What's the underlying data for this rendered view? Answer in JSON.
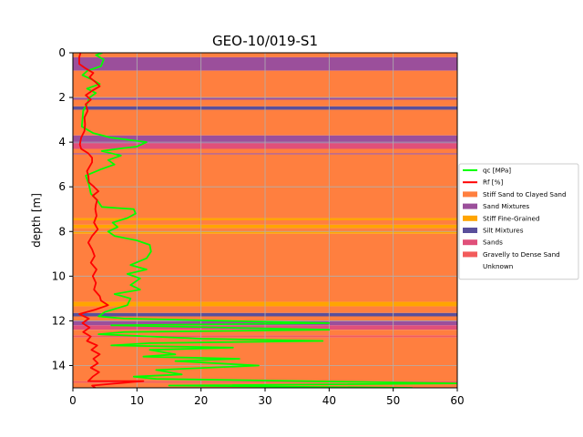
{
  "chart_data": {
    "type": "line",
    "title": "GEO-10/019-S1",
    "xlabel": "",
    "ylabel": "depth [m]",
    "xlim": [
      0,
      60
    ],
    "ylim": [
      15,
      0
    ],
    "x_ticks": [
      "0",
      "10",
      "20",
      "30",
      "40",
      "50",
      "60"
    ],
    "y_ticks": [
      "0",
      "2",
      "4",
      "6",
      "8",
      "10",
      "12",
      "14"
    ],
    "grid": true,
    "legend_position": "right",
    "series": [
      {
        "name": "qc [MPa]",
        "color": "#00ff00",
        "points": [
          [
            4.6,
            0.0
          ],
          [
            3.6,
            0.1
          ],
          [
            4.8,
            0.3
          ],
          [
            4.4,
            0.6
          ],
          [
            2.3,
            0.8
          ],
          [
            1.5,
            1.0
          ],
          [
            3.0,
            1.2
          ],
          [
            4.2,
            1.4
          ],
          [
            2.2,
            1.6
          ],
          [
            3.6,
            1.8
          ],
          [
            2.6,
            2.0
          ],
          [
            2.2,
            2.3
          ],
          [
            1.6,
            2.6
          ],
          [
            1.5,
            3.0
          ],
          [
            1.4,
            3.3
          ],
          [
            3.2,
            3.6
          ],
          [
            6.0,
            3.8
          ],
          [
            11.5,
            4.0
          ],
          [
            10.0,
            4.2
          ],
          [
            7.0,
            4.3
          ],
          [
            4.5,
            4.4
          ],
          [
            7.5,
            4.6
          ],
          [
            5.5,
            4.8
          ],
          [
            6.5,
            5.0
          ],
          [
            4.5,
            5.2
          ],
          [
            2.0,
            5.5
          ],
          [
            2.5,
            5.9
          ],
          [
            2.8,
            6.3
          ],
          [
            3.8,
            6.6
          ],
          [
            4.5,
            6.9
          ],
          [
            9.5,
            7.0
          ],
          [
            9.8,
            7.2
          ],
          [
            8.5,
            7.4
          ],
          [
            6.2,
            7.6
          ],
          [
            7.0,
            7.8
          ],
          [
            5.5,
            8.0
          ],
          [
            6.5,
            8.2
          ],
          [
            10.0,
            8.4
          ],
          [
            12.0,
            8.6
          ],
          [
            12.2,
            8.9
          ],
          [
            11.5,
            9.2
          ],
          [
            9.0,
            9.5
          ],
          [
            11.5,
            9.7
          ],
          [
            8.5,
            9.9
          ],
          [
            10.5,
            10.1
          ],
          [
            9.0,
            10.4
          ],
          [
            10.5,
            10.6
          ],
          [
            6.5,
            10.8
          ],
          [
            9.0,
            11.0
          ],
          [
            8.5,
            11.3
          ],
          [
            5.0,
            11.6
          ],
          [
            4.0,
            11.8
          ],
          [
            8.0,
            11.9
          ],
          [
            40.0,
            12.1
          ],
          [
            6.0,
            12.2
          ],
          [
            40.0,
            12.4
          ],
          [
            8.0,
            12.5
          ],
          [
            4.0,
            12.6
          ],
          [
            20.0,
            12.8
          ],
          [
            39.0,
            12.9
          ],
          [
            12.0,
            13.0
          ],
          [
            6.0,
            13.1
          ],
          [
            25.0,
            13.2
          ],
          [
            12.0,
            13.3
          ],
          [
            16.0,
            13.5
          ],
          [
            11.0,
            13.6
          ],
          [
            26.0,
            13.7
          ],
          [
            16.0,
            13.8
          ],
          [
            29.0,
            14.0
          ],
          [
            13.0,
            14.2
          ],
          [
            17.0,
            14.4
          ],
          [
            9.5,
            14.5
          ],
          [
            13.0,
            14.6
          ],
          [
            60.0,
            14.8
          ],
          [
            15.0,
            14.9
          ],
          [
            53.0,
            15.0
          ]
        ]
      },
      {
        "name": "Rf [%]",
        "color": "#ff0000",
        "points": [
          [
            1.2,
            0.0
          ],
          [
            1.0,
            0.2
          ],
          [
            1.0,
            0.5
          ],
          [
            2.0,
            0.7
          ],
          [
            3.2,
            0.9
          ],
          [
            2.6,
            1.1
          ],
          [
            3.5,
            1.3
          ],
          [
            4.2,
            1.5
          ],
          [
            3.0,
            1.7
          ],
          [
            2.0,
            1.9
          ],
          [
            2.8,
            2.1
          ],
          [
            2.0,
            2.3
          ],
          [
            2.3,
            2.6
          ],
          [
            1.8,
            2.9
          ],
          [
            1.9,
            3.2
          ],
          [
            1.8,
            3.5
          ],
          [
            1.3,
            3.8
          ],
          [
            1.1,
            4.1
          ],
          [
            1.3,
            4.3
          ],
          [
            2.4,
            4.5
          ],
          [
            3.0,
            4.7
          ],
          [
            3.0,
            4.9
          ],
          [
            2.6,
            5.1
          ],
          [
            2.2,
            5.3
          ],
          [
            2.4,
            5.5
          ],
          [
            2.5,
            5.8
          ],
          [
            3.3,
            6.0
          ],
          [
            4.0,
            6.2
          ],
          [
            3.1,
            6.4
          ],
          [
            3.8,
            6.6
          ],
          [
            3.6,
            6.8
          ],
          [
            3.5,
            7.0
          ],
          [
            3.7,
            7.3
          ],
          [
            3.3,
            7.6
          ],
          [
            3.9,
            7.9
          ],
          [
            3.0,
            8.2
          ],
          [
            2.4,
            8.5
          ],
          [
            3.0,
            8.8
          ],
          [
            3.4,
            9.1
          ],
          [
            2.8,
            9.4
          ],
          [
            3.7,
            9.7
          ],
          [
            3.1,
            10.0
          ],
          [
            3.6,
            10.3
          ],
          [
            3.3,
            10.6
          ],
          [
            4.2,
            10.9
          ],
          [
            4.4,
            11.1
          ],
          [
            5.5,
            11.3
          ],
          [
            3.5,
            11.5
          ],
          [
            1.0,
            11.7
          ],
          [
            2.5,
            11.9
          ],
          [
            1.5,
            12.1
          ],
          [
            2.6,
            12.3
          ],
          [
            1.6,
            12.5
          ],
          [
            2.8,
            12.7
          ],
          [
            2.2,
            12.9
          ],
          [
            3.8,
            13.1
          ],
          [
            2.9,
            13.3
          ],
          [
            4.2,
            13.5
          ],
          [
            3.2,
            13.7
          ],
          [
            3.9,
            13.9
          ],
          [
            2.8,
            14.1
          ],
          [
            4.1,
            14.3
          ],
          [
            3.1,
            14.5
          ],
          [
            2.4,
            14.7
          ],
          [
            11.0,
            14.7
          ],
          [
            3.0,
            14.9
          ],
          [
            3.5,
            15.0
          ]
        ]
      }
    ],
    "soil_layers": [
      {
        "from": 0.0,
        "to": 0.2,
        "class": "Stiff Sand to Clayed Sand"
      },
      {
        "from": 0.2,
        "to": 0.8,
        "class": "Sand Mixtures"
      },
      {
        "from": 0.8,
        "to": 2.0,
        "class": "Stiff Sand to Clayed Sand"
      },
      {
        "from": 2.0,
        "to": 2.1,
        "class": "Sand Mixtures"
      },
      {
        "from": 2.1,
        "to": 2.4,
        "class": "Stiff Sand to Clayed Sand"
      },
      {
        "from": 2.4,
        "to": 2.55,
        "class": "Silt Mixtures"
      },
      {
        "from": 2.55,
        "to": 3.7,
        "class": "Stiff Sand to Clayed Sand"
      },
      {
        "from": 3.7,
        "to": 4.05,
        "class": "Sand Mixtures"
      },
      {
        "from": 4.05,
        "to": 4.3,
        "class": "Sands"
      },
      {
        "from": 4.3,
        "to": 4.5,
        "class": "Stiff Sand to Clayed Sand"
      },
      {
        "from": 4.5,
        "to": 4.55,
        "class": "Sand Mixtures"
      },
      {
        "from": 4.55,
        "to": 7.4,
        "class": "Stiff Sand to Clayed Sand"
      },
      {
        "from": 7.4,
        "to": 7.5,
        "class": "Stiff Fine-Grained"
      },
      {
        "from": 7.5,
        "to": 7.7,
        "class": "Stiff Sand to Clayed Sand"
      },
      {
        "from": 7.7,
        "to": 7.85,
        "class": "Stiff Fine-Grained"
      },
      {
        "from": 7.85,
        "to": 8.0,
        "class": "Stiff Sand to Clayed Sand"
      },
      {
        "from": 8.0,
        "to": 8.1,
        "class": "Stiff Fine-Grained"
      },
      {
        "from": 8.1,
        "to": 11.15,
        "class": "Stiff Sand to Clayed Sand"
      },
      {
        "from": 11.15,
        "to": 11.35,
        "class": "Stiff Fine-Grained"
      },
      {
        "from": 11.35,
        "to": 11.65,
        "class": "Stiff Sand to Clayed Sand"
      },
      {
        "from": 11.65,
        "to": 11.8,
        "class": "Silt Mixtures"
      },
      {
        "from": 11.8,
        "to": 12.0,
        "class": "Stiff Sand to Clayed Sand"
      },
      {
        "from": 12.0,
        "to": 12.2,
        "class": "Sand Mixtures"
      },
      {
        "from": 12.2,
        "to": 12.4,
        "class": "Sands"
      },
      {
        "from": 12.4,
        "to": 12.65,
        "class": "Stiff Sand to Clayed Sand"
      },
      {
        "from": 12.65,
        "to": 12.75,
        "class": "Gravelly to Dense Sand"
      },
      {
        "from": 12.75,
        "to": 14.7,
        "class": "Stiff Sand to Clayed Sand"
      },
      {
        "from": 14.7,
        "to": 14.78,
        "class": "Gravelly to Dense Sand"
      },
      {
        "from": 14.78,
        "to": 15.0,
        "class": "Stiff Sand to Clayed Sand"
      }
    ],
    "legend": [
      {
        "label": "qc [MPa]",
        "kind": "line",
        "color": "#00ff00"
      },
      {
        "label": "Rf [%]",
        "kind": "line",
        "color": "#ff0000"
      },
      {
        "label": "Stiff Sand to Clayed Sand",
        "kind": "patch",
        "color": "#ff7f3f"
      },
      {
        "label": "Sand Mixtures",
        "kind": "patch",
        "color": "#9b4f9b"
      },
      {
        "label": "Stiff Fine-Grained",
        "kind": "patch",
        "color": "#ffa500"
      },
      {
        "label": "Silt Mixtures",
        "kind": "patch",
        "color": "#5a4f9b"
      },
      {
        "label": "Sands",
        "kind": "patch",
        "color": "#e0507a"
      },
      {
        "label": "Gravelly to Dense Sand",
        "kind": "patch",
        "color": "#f25b5b"
      },
      {
        "label": "Unknown",
        "kind": "patch",
        "color": "#ffffff"
      }
    ]
  }
}
